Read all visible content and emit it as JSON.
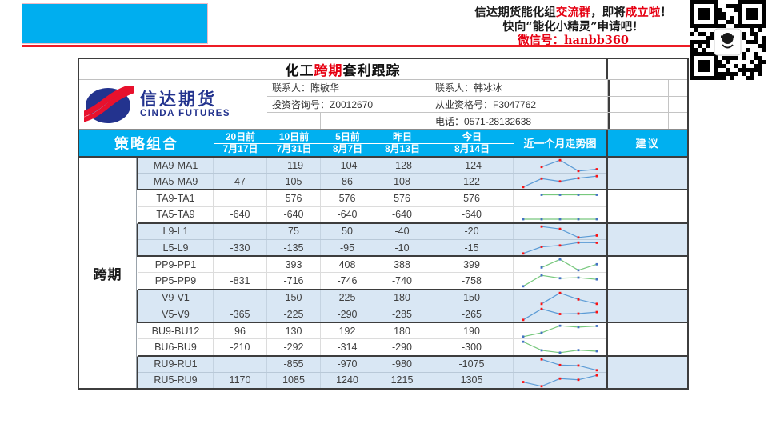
{
  "banner": {
    "line1_parts": [
      {
        "t": "信达期货能化组",
        "red": false
      },
      {
        "t": "交流群",
        "red": true
      },
      {
        "t": "，即将",
        "red": false
      },
      {
        "t": "成立啦",
        "red": true
      },
      {
        "t": "！",
        "red": false
      }
    ],
    "line2": "快向“能化小精灵”申请吧！",
    "line3": "微信号：hanbb360"
  },
  "doc": {
    "title_parts": [
      {
        "t": "化工",
        "red": false
      },
      {
        "t": "跨期",
        "red": true
      },
      {
        "t": "套利跟踪",
        "red": false
      }
    ],
    "logo": {
      "cn": "信达期货",
      "en": "CINDA FUTURES"
    },
    "contacts": {
      "contact1_name": "联系人：陈敏华",
      "contact1_license": "投资咨询号：Z0012670",
      "contact2_name": "联系人：韩冰冰",
      "contact2_license": "从业资格号：F3047762",
      "contact2_phone": "电话：0571-28132638"
    }
  },
  "header": {
    "strategy": "策略组合",
    "date_cols": [
      {
        "top": "20日前",
        "date": "7月17日"
      },
      {
        "top": "10日前",
        "date": "7月31日"
      },
      {
        "top": "5日前",
        "date": "8月7日"
      },
      {
        "top": "昨日",
        "date": "8月13日"
      },
      {
        "top": "今日",
        "date": "8月14日"
      }
    ],
    "trend": "近一个月走势图",
    "advice": "建议"
  },
  "body": {
    "category": "跨期",
    "groups": [
      {
        "bg": "blue",
        "rows": [
          {
            "name": "MA9-MA1",
            "values": [
              null,
              -119,
              -104,
              -128,
              -124
            ]
          },
          {
            "name": "MA5-MA9",
            "values": [
              47,
              105,
              86,
              108,
              122
            ]
          }
        ]
      },
      {
        "bg": "white",
        "rows": [
          {
            "name": "TA9-TA1",
            "values": [
              null,
              576,
              576,
              576,
              576
            ]
          },
          {
            "name": "TA5-TA9",
            "values": [
              -640,
              -640,
              -640,
              -640,
              -640
            ]
          }
        ]
      },
      {
        "bg": "blue",
        "rows": [
          {
            "name": "L9-L1",
            "values": [
              null,
              75,
              50,
              -40,
              -20
            ]
          },
          {
            "name": "L5-L9",
            "values": [
              -330,
              -135,
              -95,
              -10,
              -15
            ]
          }
        ]
      },
      {
        "bg": "white",
        "rows": [
          {
            "name": "PP9-PP1",
            "values": [
              null,
              393,
              408,
              388,
              399
            ]
          },
          {
            "name": "PP5-PP9",
            "values": [
              -831,
              -716,
              -746,
              -740,
              -758
            ]
          }
        ]
      },
      {
        "bg": "blue",
        "rows": [
          {
            "name": "V9-V1",
            "values": [
              null,
              150,
              225,
              180,
              150
            ]
          },
          {
            "name": "V5-V9",
            "values": [
              -365,
              -225,
              -290,
              -285,
              -265
            ]
          }
        ]
      },
      {
        "bg": "white",
        "rows": [
          {
            "name": "BU9-BU12",
            "values": [
              96,
              130,
              192,
              180,
              190
            ]
          },
          {
            "name": "BU6-BU9",
            "values": [
              -210,
              -292,
              -314,
              -290,
              -300
            ]
          }
        ]
      },
      {
        "bg": "blue",
        "rows": [
          {
            "name": "RU9-RU1",
            "values": [
              null,
              -855,
              -970,
              -980,
              -1075
            ]
          },
          {
            "name": "RU5-RU9",
            "values": [
              1170,
              1085,
              1240,
              1215,
              1305
            ]
          }
        ]
      }
    ],
    "advice_values": [
      "",
      "",
      "",
      "",
      "",
      "",
      ""
    ]
  },
  "chart_data": {
    "type": "line",
    "note_title": "近一个月走势图 sparklines",
    "x_labels": [
      "7月17日",
      "7月31日",
      "8月7日",
      "8月13日",
      "8月14日"
    ],
    "series": [
      {
        "name": "MA9-MA1",
        "values": [
          null,
          -119,
          -104,
          -128,
          -124
        ]
      },
      {
        "name": "MA5-MA9",
        "values": [
          47,
          105,
          86,
          108,
          122
        ]
      },
      {
        "name": "TA9-TA1",
        "values": [
          null,
          576,
          576,
          576,
          576
        ]
      },
      {
        "name": "TA5-TA9",
        "values": [
          -640,
          -640,
          -640,
          -640,
          -640
        ]
      },
      {
        "name": "L9-L1",
        "values": [
          null,
          75,
          50,
          -40,
          -20
        ]
      },
      {
        "name": "L5-L9",
        "values": [
          -330,
          -135,
          -95,
          -10,
          -15
        ]
      },
      {
        "name": "PP9-PP1",
        "values": [
          null,
          393,
          408,
          388,
          399
        ]
      },
      {
        "name": "PP5-PP9",
        "values": [
          -831,
          -716,
          -746,
          -740,
          -758
        ]
      },
      {
        "name": "V9-V1",
        "values": [
          null,
          150,
          225,
          180,
          150
        ]
      },
      {
        "name": "V5-V9",
        "values": [
          -365,
          -225,
          -290,
          -285,
          -265
        ]
      },
      {
        "name": "BU9-BU12",
        "values": [
          96,
          130,
          192,
          180,
          190
        ]
      },
      {
        "name": "BU6-BU9",
        "values": [
          -210,
          -292,
          -314,
          -290,
          -300
        ]
      },
      {
        "name": "RU9-RU1",
        "values": [
          null,
          -855,
          -970,
          -980,
          -1075
        ]
      },
      {
        "name": "RU5-RU9",
        "values": [
          1170,
          1085,
          1240,
          1215,
          1305
        ]
      }
    ]
  },
  "colors": {
    "accent_cyan": "#00B0F0",
    "banner_cyan": "#00AEEF",
    "red": "#e60012",
    "red_line": "#ee1c25",
    "navy_logo": "#23338e",
    "row_blue": "#d9e7f4",
    "spark_line_blue": "#5b9bd5",
    "spark_line_green": "#77c87d",
    "spark_marker_red": "#ff1111",
    "spark_marker_blue": "#4472c4"
  }
}
